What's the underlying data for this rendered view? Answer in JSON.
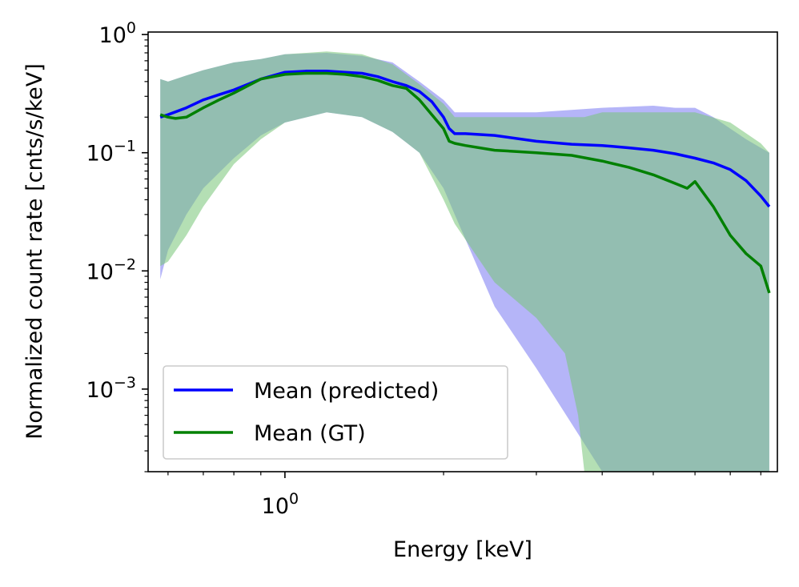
{
  "chart_data": {
    "type": "line",
    "title": "",
    "xlabel": "Energy [keV]",
    "ylabel": "Normalized count rate [cnts/s/keV]",
    "xscale": "log",
    "yscale": "log",
    "xlim": [
      0.55,
      8.6
    ],
    "ylim": [
      0.0002,
      1.05
    ],
    "x_major_ticks": [
      {
        "value": 1.0,
        "label": "10⁰"
      }
    ],
    "x_minor_ticks": [
      0.6,
      0.7,
      0.8,
      0.9,
      2,
      3,
      4,
      5,
      6,
      7,
      8
    ],
    "y_major_ticks": [
      {
        "value": 1.0,
        "base": "10",
        "exp": "0"
      },
      {
        "value": 0.1,
        "base": "10",
        "exp": "−1"
      },
      {
        "value": 0.01,
        "base": "10",
        "exp": "−2"
      },
      {
        "value": 0.001,
        "base": "10",
        "exp": "−3"
      }
    ],
    "grid": false,
    "legend_position": "lower-left",
    "series": [
      {
        "name": "Mean (predicted)",
        "color": "#0000ff",
        "x": [
          0.58,
          0.6,
          0.65,
          0.7,
          0.75,
          0.8,
          0.9,
          1.0,
          1.1,
          1.2,
          1.3,
          1.4,
          1.5,
          1.6,
          1.7,
          1.8,
          1.9,
          2.0,
          2.05,
          2.1,
          2.2,
          2.5,
          3.0,
          3.5,
          4.0,
          4.5,
          5.0,
          5.5,
          6.0,
          6.5,
          7.0,
          7.5,
          8.0,
          8.3
        ],
        "y": [
          0.2,
          0.21,
          0.24,
          0.28,
          0.31,
          0.34,
          0.42,
          0.48,
          0.49,
          0.49,
          0.48,
          0.47,
          0.44,
          0.4,
          0.37,
          0.33,
          0.27,
          0.2,
          0.16,
          0.145,
          0.145,
          0.14,
          0.125,
          0.118,
          0.115,
          0.11,
          0.105,
          0.098,
          0.09,
          0.082,
          0.072,
          0.058,
          0.043,
          0.035
        ]
      },
      {
        "name": "Mean (GT)",
        "color": "#008000",
        "x": [
          0.58,
          0.6,
          0.62,
          0.65,
          0.7,
          0.75,
          0.8,
          0.9,
          1.0,
          1.1,
          1.2,
          1.3,
          1.4,
          1.5,
          1.6,
          1.7,
          1.8,
          1.9,
          2.0,
          2.05,
          2.1,
          2.2,
          2.5,
          3.0,
          3.5,
          4.0,
          4.5,
          5.0,
          5.5,
          5.8,
          6.0,
          6.5,
          7.0,
          7.5,
          8.0,
          8.3
        ],
        "y": [
          0.21,
          0.2,
          0.195,
          0.2,
          0.24,
          0.28,
          0.32,
          0.42,
          0.46,
          0.47,
          0.47,
          0.46,
          0.44,
          0.41,
          0.37,
          0.35,
          0.28,
          0.21,
          0.16,
          0.125,
          0.12,
          0.115,
          0.105,
          0.1,
          0.095,
          0.085,
          0.075,
          0.065,
          0.055,
          0.05,
          0.057,
          0.035,
          0.02,
          0.014,
          0.011,
          0.0065
        ]
      }
    ],
    "bands": [
      {
        "color": "#6c6cf2",
        "opacity": 0.5,
        "x": [
          0.58,
          0.6,
          0.65,
          0.7,
          0.8,
          0.9,
          1.0,
          1.2,
          1.4,
          1.6,
          1.8,
          2.0,
          2.1,
          2.5,
          3.0,
          4.0,
          5.0,
          5.5,
          6.0,
          6.5,
          7.0,
          7.5,
          8.0,
          8.3
        ],
        "upper": [
          0.42,
          0.4,
          0.45,
          0.5,
          0.58,
          0.62,
          0.68,
          0.7,
          0.66,
          0.58,
          0.4,
          0.28,
          0.22,
          0.22,
          0.22,
          0.24,
          0.25,
          0.24,
          0.24,
          0.2,
          0.16,
          0.13,
          0.11,
          0.1
        ],
        "lower": [
          0.0085,
          0.015,
          0.03,
          0.05,
          0.09,
          0.14,
          0.18,
          0.22,
          0.2,
          0.15,
          0.1,
          0.05,
          0.03,
          0.005,
          0.0015,
          0.0002,
          0.0002,
          0.0002,
          0.0002,
          0.0002,
          0.0002,
          0.0002,
          0.0002,
          0.0002
        ]
      },
      {
        "color": "#77c477",
        "opacity": 0.55,
        "x": [
          0.58,
          0.6,
          0.65,
          0.7,
          0.8,
          0.9,
          1.0,
          1.2,
          1.4,
          1.6,
          1.8,
          2.0,
          2.1,
          2.5,
          3.0,
          3.4,
          3.6,
          3.7,
          4.0,
          5.0,
          6.0,
          7.0,
          8.0,
          8.3
        ],
        "upper": [
          0.42,
          0.4,
          0.45,
          0.5,
          0.58,
          0.62,
          0.68,
          0.72,
          0.68,
          0.56,
          0.38,
          0.26,
          0.2,
          0.2,
          0.2,
          0.2,
          0.2,
          0.2,
          0.22,
          0.22,
          0.22,
          0.18,
          0.12,
          0.1
        ],
        "lower": [
          0.011,
          0.012,
          0.02,
          0.035,
          0.08,
          0.13,
          0.18,
          0.22,
          0.2,
          0.15,
          0.1,
          0.04,
          0.025,
          0.008,
          0.004,
          0.002,
          0.0006,
          0.0002,
          0.0002,
          0.0002,
          0.0002,
          0.0002,
          0.0002,
          0.0002
        ]
      }
    ]
  }
}
